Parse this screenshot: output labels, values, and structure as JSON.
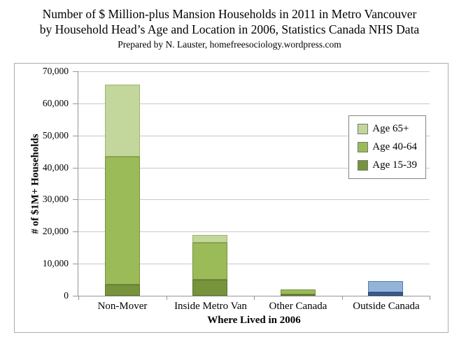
{
  "title": {
    "line1": "Number of $ Million-plus Mansion Households in 2011 in Metro Vancouver",
    "line2": "by Household Head’s Age and Location in 2006, Statistics Canada NHS Data",
    "line3": "Prepared by N. Lauster,  homefreesociology.wordpress.com"
  },
  "chart_data": {
    "type": "bar",
    "stacked": true,
    "title": "Number of $ Million-plus Mansion Households in 2011 in Metro Vancouver by Household Head’s Age and Location in 2006, Statistics Canada NHS Data",
    "subtitle": "Prepared by N. Lauster,  homefreesociology.wordpress.com",
    "xlabel": "Where Lived in 2006",
    "ylabel": "# of $1M+ Households",
    "ylim": [
      0,
      70000
    ],
    "ytick_step": 10000,
    "ytick_labels": [
      "0",
      "10,000",
      "20,000",
      "30,000",
      "40,000",
      "50,000",
      "60,000",
      "70,000"
    ],
    "grid": true,
    "legend_position": "inside-right",
    "legend_entries": [
      "Age 65+",
      "Age 40-64",
      "Age 15-39"
    ],
    "categories": [
      "Non-Mover",
      "Inside Metro Van",
      "Other Canada",
      "Outside Canada"
    ],
    "series": [
      {
        "name": "Age 15-39",
        "color": "#77933C",
        "border": "#5e7530",
        "values": [
          3500,
          5000,
          400,
          1000
        ]
      },
      {
        "name": "Age 40-64",
        "color": "#9BBB59",
        "border": "#77933C",
        "values": [
          40000,
          11500,
          1600,
          3500
        ]
      },
      {
        "name": "Age 65+",
        "color": "#C3D69B",
        "border": "#9eb56f",
        "values": [
          22500,
          2500,
          0,
          0
        ]
      }
    ],
    "totals": [
      66000,
      19000,
      2000,
      4500
    ],
    "category_color_overrides": {
      "Outside Canada": {
        "Age 15-39": {
          "color": "#376092",
          "border": "#254061"
        },
        "Age 40-64": {
          "color": "#95B3D7",
          "border": "#4F81BD"
        }
      }
    },
    "note": "Outside Canada bar is shown in blue instead of the green age palette"
  },
  "colors": {
    "background": "#FFFFFF",
    "text": "#000000",
    "gridline": "#C9C9C9",
    "axis": "#969696",
    "chart_border": "#ACACAC",
    "legend_border": "#848484",
    "legend_background": "#FFFFFF"
  }
}
